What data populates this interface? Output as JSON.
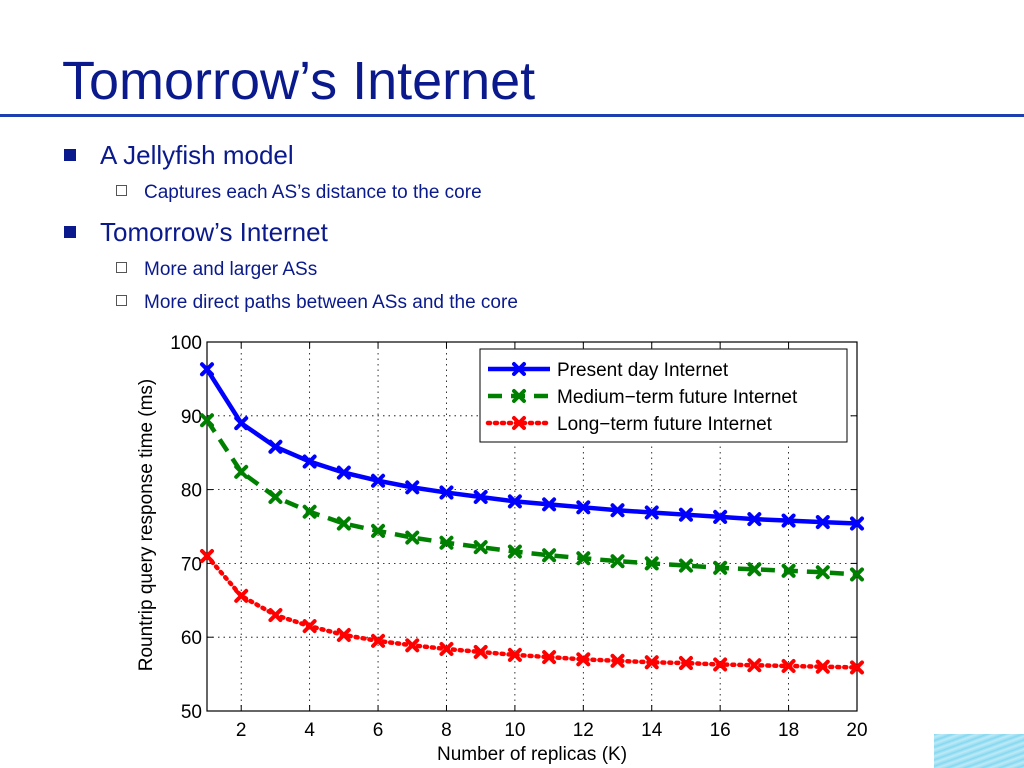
{
  "slide": {
    "title": "Tomorrow’s Internet",
    "bullets": [
      {
        "text": "A Jellyfish model",
        "sub": [
          "Captures each AS’s distance to the core"
        ]
      },
      {
        "text": "Tomorrow’s Internet",
        "sub": [
          "More and larger ASs",
          "More direct paths between ASs and the core"
        ]
      }
    ]
  },
  "chart_data": {
    "type": "line",
    "title": "",
    "xlabel": "Number of replicas (K)",
    "ylabel": "Rountrip query response time (ms)",
    "xlim": [
      1,
      20
    ],
    "ylim": [
      50,
      100
    ],
    "x_ticks": [
      2,
      4,
      6,
      8,
      10,
      12,
      14,
      16,
      18,
      20
    ],
    "y_ticks": [
      50,
      60,
      70,
      80,
      90,
      100
    ],
    "grid": true,
    "legend_position": "top-right",
    "x": [
      1,
      2,
      3,
      4,
      5,
      6,
      7,
      8,
      9,
      10,
      11,
      12,
      13,
      14,
      15,
      16,
      17,
      18,
      19,
      20
    ],
    "series": [
      {
        "name": "Present day Internet",
        "color": "#0000ff",
        "style": "solid",
        "values": [
          96.3,
          89.0,
          85.8,
          83.8,
          82.3,
          81.2,
          80.3,
          79.6,
          79.0,
          78.4,
          78.0,
          77.6,
          77.2,
          76.9,
          76.6,
          76.3,
          76.0,
          75.8,
          75.6,
          75.4
        ]
      },
      {
        "name": "Medium−term future Internet",
        "color": "#008000",
        "style": "dashed",
        "values": [
          89.4,
          82.4,
          79.0,
          77.0,
          75.4,
          74.4,
          73.5,
          72.8,
          72.2,
          71.6,
          71.1,
          70.7,
          70.3,
          70.0,
          69.7,
          69.4,
          69.2,
          69.0,
          68.8,
          68.5
        ]
      },
      {
        "name": "Long−term future Internet",
        "color": "#ff0000",
        "style": "dotted",
        "values": [
          71.0,
          65.6,
          63.0,
          61.5,
          60.3,
          59.5,
          58.9,
          58.4,
          58.0,
          57.6,
          57.3,
          57.0,
          56.8,
          56.6,
          56.5,
          56.3,
          56.2,
          56.1,
          56.0,
          55.9
        ]
      }
    ]
  }
}
